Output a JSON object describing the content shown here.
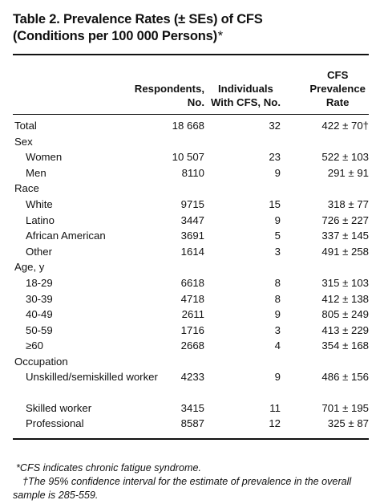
{
  "title": {
    "line1": "Table 2. Prevalence Rates (± SEs) of CFS",
    "line2": "(Conditions per 100 000 Persons)",
    "mark": "*"
  },
  "columns": {
    "respondents": [
      "Respondents,",
      "No."
    ],
    "individuals": [
      "Individuals",
      "With CFS, No."
    ],
    "prevalence": [
      "CFS",
      "Prevalence",
      "Rate"
    ]
  },
  "rows": [
    {
      "label": "Total",
      "respondents": "18 668",
      "individuals": "32",
      "rate": "422 ± 70†"
    },
    {
      "label": "Sex",
      "respondents": "",
      "individuals": "",
      "rate": ""
    },
    {
      "label": "Women",
      "respondents": "10 507",
      "individuals": "23",
      "rate": "522 ± 103"
    },
    {
      "label": "Men",
      "respondents": "8110",
      "individuals": "9",
      "rate": "291 ± 91"
    },
    {
      "label": "Race",
      "respondents": "",
      "individuals": "",
      "rate": ""
    },
    {
      "label": "White",
      "respondents": "9715",
      "individuals": "15",
      "rate": "318 ± 77"
    },
    {
      "label": "Latino",
      "respondents": "3447",
      "individuals": "9",
      "rate": "726 ± 227"
    },
    {
      "label": "African American",
      "respondents": "3691",
      "individuals": "5",
      "rate": "337 ± 145"
    },
    {
      "label": "Other",
      "respondents": "1614",
      "individuals": "3",
      "rate": "491 ± 258"
    },
    {
      "label": "Age, y",
      "respondents": "",
      "individuals": "",
      "rate": ""
    },
    {
      "label": "18-29",
      "respondents": "6618",
      "individuals": "8",
      "rate": "315 ± 103"
    },
    {
      "label": "30-39",
      "respondents": "4718",
      "individuals": "8",
      "rate": "412 ± 138"
    },
    {
      "label": "40-49",
      "respondents": "2611",
      "individuals": "9",
      "rate": "805 ± 249"
    },
    {
      "label": "50-59",
      "respondents": "1716",
      "individuals": "3",
      "rate": "413 ± 229"
    },
    {
      "label": "≥60",
      "respondents": "2668",
      "individuals": "4",
      "rate": "354 ± 168"
    },
    {
      "label": "Occupation",
      "respondents": "",
      "individuals": "",
      "rate": ""
    },
    {
      "label": "Unskilled/semiskilled worker",
      "respondents": "4233",
      "individuals": "9",
      "rate": "486 ± 156"
    },
    {
      "label": "Skilled worker",
      "respondents": "3415",
      "individuals": "11",
      "rate": "701 ± 195"
    },
    {
      "label": "Professional",
      "respondents": "8587",
      "individuals": "12",
      "rate": "325 ± 87"
    }
  ],
  "footnotes": [
    "*CFS indicates chronic fatigue syndrome.",
    "†The 95% confidence interval for the estimate of prevalence in the overall sample is 285-559."
  ]
}
